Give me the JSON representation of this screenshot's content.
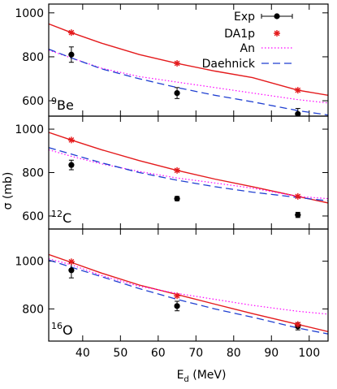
{
  "figure": {
    "xlabel": "E",
    "xlabel_sub": "d",
    "xlabel_unit": " (MeV)",
    "ylabel": "σ (mb)"
  },
  "legend": {
    "placement": "top-right",
    "entries": [
      {
        "label": "Exp",
        "style": "points-errorbars",
        "color": "#000000"
      },
      {
        "label": "DA1p",
        "style": "star",
        "color": "#e41a1c"
      },
      {
        "label": "An",
        "style": "dotted",
        "color": "#ff00ff"
      },
      {
        "label": "Daehnick",
        "style": "dashed",
        "color": "#1f3fd1"
      }
    ]
  },
  "colors": {
    "exp": "#000000",
    "da1p": "#e41a1c",
    "an": "#ff00ff",
    "daehnick": "#1f3fd1"
  },
  "chart_data": [
    {
      "type": "scatter",
      "panel_label_sup": "9",
      "panel_label": "Be",
      "xlim": [
        31,
        105
      ],
      "ylim": [
        530,
        1040
      ],
      "xticks": [
        30,
        40,
        50,
        60,
        70,
        80,
        90,
        100
      ],
      "yticks": [
        600,
        800,
        1000
      ],
      "series": [
        {
          "name": "Exp",
          "kind": "points",
          "x": [
            37,
            65,
            97
          ],
          "y": [
            810,
            635,
            540
          ],
          "err": [
            35,
            25,
            25
          ]
        },
        {
          "name": "DA1p",
          "kind": "markers",
          "x": [
            37,
            65,
            97
          ],
          "y": [
            910,
            770,
            648
          ]
        },
        {
          "name": "DA1p",
          "kind": "curve",
          "x": [
            31,
            37,
            45,
            55,
            65,
            75,
            85,
            97,
            105
          ],
          "y": [
            950,
            910,
            862,
            810,
            770,
            735,
            705,
            648,
            625
          ]
        },
        {
          "name": "An",
          "kind": "curve",
          "x": [
            31,
            37,
            45,
            55,
            65,
            75,
            85,
            97,
            105
          ],
          "y": [
            830,
            795,
            748,
            710,
            685,
            660,
            635,
            605,
            590
          ]
        },
        {
          "name": "Daehnick",
          "kind": "curve",
          "x": [
            31,
            37,
            45,
            55,
            65,
            75,
            85,
            97,
            105
          ],
          "y": [
            835,
            795,
            745,
            700,
            660,
            625,
            595,
            555,
            535
          ]
        }
      ]
    },
    {
      "type": "scatter",
      "panel_label_sup": "12",
      "panel_label": "C",
      "xlim": [
        31,
        105
      ],
      "ylim": [
        540,
        1060
      ],
      "xticks": [
        30,
        40,
        50,
        60,
        70,
        80,
        90,
        100
      ],
      "yticks": [
        600,
        800,
        1000
      ],
      "series": [
        {
          "name": "Exp",
          "kind": "points",
          "x": [
            37,
            65,
            97
          ],
          "y": [
            835,
            680,
            605
          ],
          "err": [
            22,
            10,
            12
          ]
        },
        {
          "name": "DA1p",
          "kind": "markers",
          "x": [
            37,
            65,
            97
          ],
          "y": [
            950,
            810,
            690
          ]
        },
        {
          "name": "DA1p",
          "kind": "curve",
          "x": [
            31,
            37,
            45,
            55,
            65,
            75,
            85,
            97,
            105
          ],
          "y": [
            985,
            950,
            905,
            855,
            810,
            770,
            735,
            690,
            660
          ]
        },
        {
          "name": "An",
          "kind": "curve",
          "x": [
            31,
            37,
            45,
            55,
            65,
            75,
            85,
            97,
            105
          ],
          "y": [
            905,
            875,
            840,
            805,
            775,
            752,
            728,
            690,
            680
          ]
        },
        {
          "name": "Daehnick",
          "kind": "curve",
          "x": [
            31,
            37,
            45,
            55,
            65,
            75,
            85,
            97,
            105
          ],
          "y": [
            915,
            885,
            845,
            800,
            765,
            735,
            710,
            685,
            670
          ]
        }
      ]
    },
    {
      "type": "scatter",
      "panel_label_sup": "16",
      "panel_label": "O",
      "xlim": [
        31,
        105
      ],
      "ylim": [
        665,
        1135
      ],
      "xticks": [
        30,
        40,
        50,
        60,
        70,
        80,
        90,
        100
      ],
      "yticks": [
        800,
        1000
      ],
      "series": [
        {
          "name": "Exp",
          "kind": "points",
          "x": [
            37,
            65,
            97
          ],
          "y": [
            962,
            812,
            727
          ],
          "err": [
            32,
            20,
            15
          ]
        },
        {
          "name": "DA1p",
          "kind": "markers",
          "x": [
            37,
            65,
            97
          ],
          "y": [
            998,
            855,
            735
          ]
        },
        {
          "name": "DA1p",
          "kind": "curve",
          "x": [
            31,
            37,
            45,
            55,
            65,
            75,
            85,
            97,
            105
          ],
          "y": [
            1028,
            995,
            950,
            900,
            860,
            820,
            780,
            735,
            705
          ]
        },
        {
          "name": "An",
          "kind": "curve",
          "x": [
            31,
            37,
            45,
            55,
            65,
            75,
            85,
            97,
            105
          ],
          "y": [
            1010,
            985,
            940,
            895,
            865,
            840,
            815,
            790,
            778
          ]
        },
        {
          "name": "Daehnick",
          "kind": "curve",
          "x": [
            31,
            37,
            45,
            55,
            65,
            75,
            85,
            97,
            105
          ],
          "y": [
            1005,
            975,
            935,
            885,
            840,
            800,
            765,
            720,
            695
          ]
        }
      ]
    }
  ]
}
